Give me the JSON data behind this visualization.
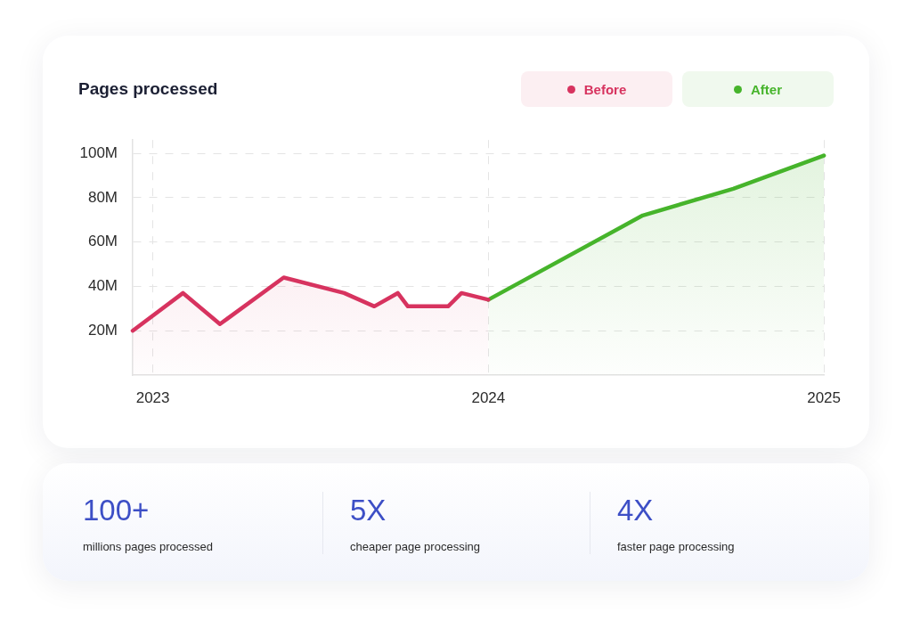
{
  "chart_data": [
    {
      "type": "area",
      "title": "Pages processed",
      "series": [
        {
          "name": "Before",
          "color": "#d7335f",
          "x": [
            2022.94,
            2023.09,
            2023.2,
            2023.39,
            2023.57,
            2023.66,
            2023.73,
            2023.76,
            2023.88,
            2023.92,
            2024
          ],
          "values": [
            20,
            37,
            23,
            44,
            37,
            31,
            37,
            31,
            31,
            37,
            34
          ]
        },
        {
          "name": "After",
          "color": "#46b42b",
          "x": [
            2024,
            2024.46,
            2024.73,
            2025
          ],
          "values": [
            34,
            72,
            84,
            99
          ]
        }
      ],
      "xlim": [
        2022.94,
        2025
      ],
      "xticks": [
        2023,
        2024,
        2025
      ],
      "ylim": [
        0,
        106
      ],
      "yticks": [
        {
          "value": 20,
          "label": "20M"
        },
        {
          "value": 40,
          "label": "40M"
        },
        {
          "value": 60,
          "label": "60M"
        },
        {
          "value": 80,
          "label": "80M"
        },
        {
          "value": 100,
          "label": "100M"
        }
      ],
      "grid": true,
      "legend": "top right",
      "marker": "none"
    },
    {
      "type": "other",
      "annotations": [
        "100+",
        "millions pages processed",
        "5X",
        "cheaper page processing",
        "4X",
        "faster page processing"
      ]
    }
  ]
}
